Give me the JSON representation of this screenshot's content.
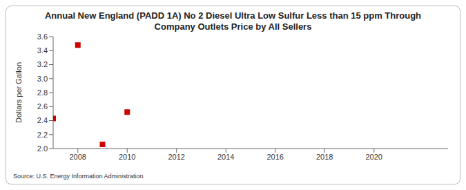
{
  "chart_data": {
    "type": "scatter",
    "title": "Annual New England (PADD 1A) No 2 Diesel Ultra Low Sulfur Less than 15 ppm Through Company Outlets Price by All Sellers",
    "y_label": "Dollars per Gallon",
    "source": "Source: U.S. Energy Information Administration",
    "x": [
      2007,
      2008,
      2009,
      2010
    ],
    "values": [
      2.43,
      3.48,
      2.06,
      2.52
    ],
    "color": "#cc0000",
    "marker": "square",
    "xlim": [
      2007,
      2023
    ],
    "xticks": [
      2008,
      2010,
      2012,
      2014,
      2016,
      2018,
      2020
    ],
    "ylim": [
      2.0,
      3.6
    ],
    "yticks": [
      {
        "value": 2,
        "label": "2.0"
      },
      2.2,
      2.4,
      2.6,
      2.8,
      {
        "value": 3,
        "label": "3.0"
      },
      3.2,
      3.4,
      3.6
    ],
    "grid": false
  }
}
